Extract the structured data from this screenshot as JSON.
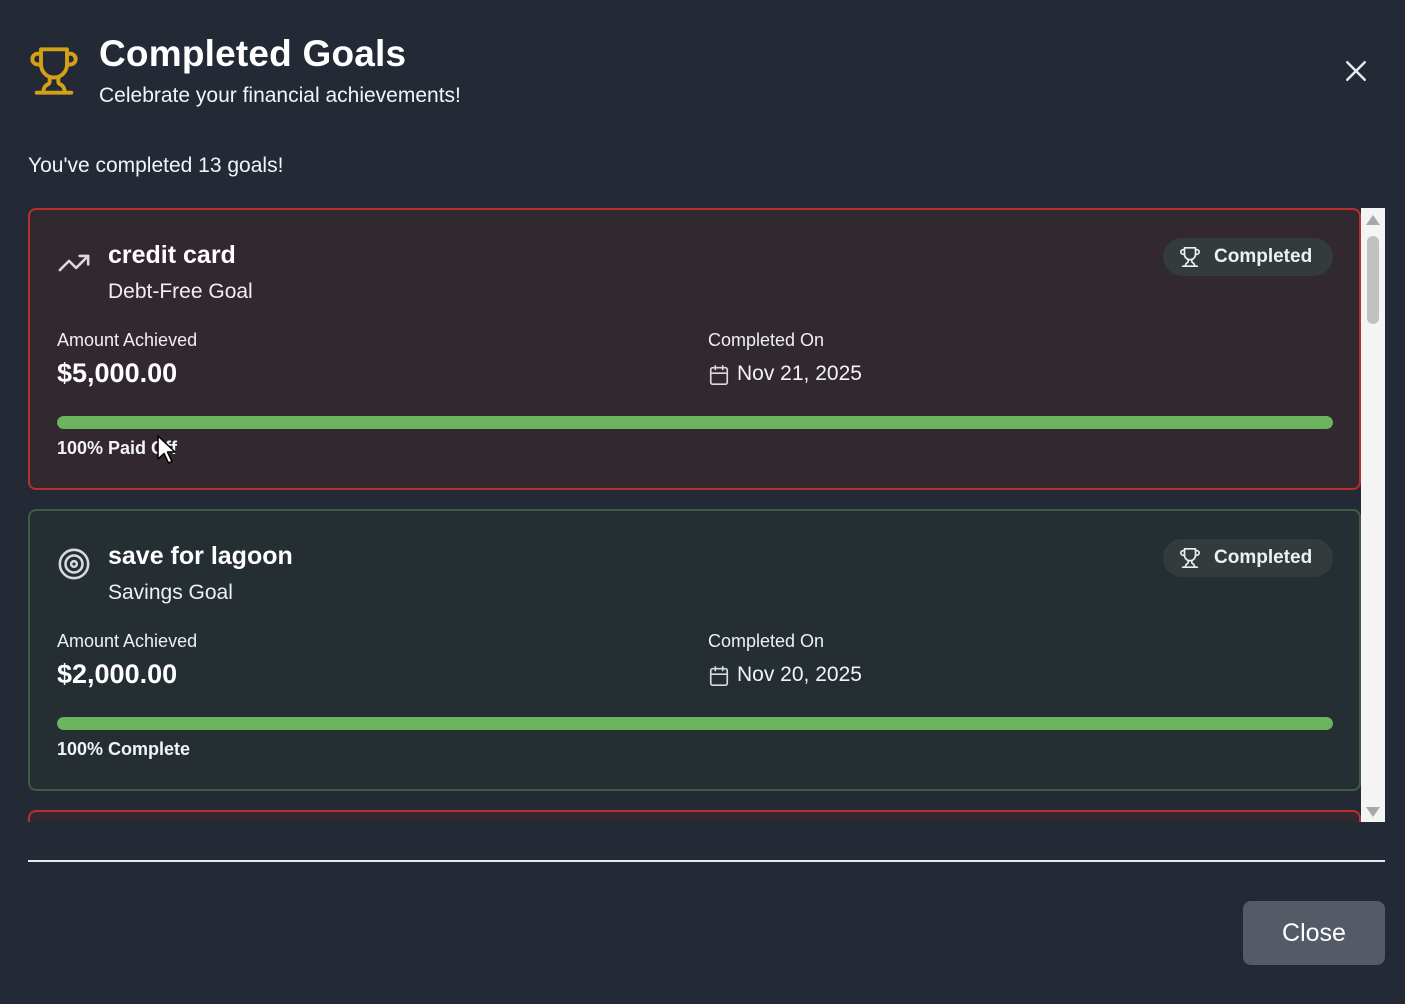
{
  "header": {
    "title": "Completed Goals",
    "subtitle": "Celebrate your financial achievements!",
    "icon": "trophy-icon",
    "icon_color": "#d4a017"
  },
  "summary": "You've completed 13 goals!",
  "goals": [
    {
      "name": "credit card",
      "type": "Debt-Free Goal",
      "icon": "trending-up-icon",
      "badge": "Completed",
      "amount_label": "Amount Achieved",
      "amount": "$5,000.00",
      "date_label": "Completed On",
      "date": "Nov 21, 2025",
      "progress": 1.0,
      "progress_text": "100% Paid Off",
      "border_color": "#b8302c"
    },
    {
      "name": "save for lagoon",
      "type": "Savings Goal",
      "icon": "target-icon",
      "badge": "Completed",
      "amount_label": "Amount Achieved",
      "amount": "$2,000.00",
      "date_label": "Completed On",
      "date": "Nov 20, 2025",
      "progress": 1.0,
      "progress_text": "100% Complete",
      "border_color": "#405c40"
    }
  ],
  "footer": {
    "close_label": "Close"
  },
  "colors": {
    "background": "#232a36",
    "progress_fill": "#6cb45e",
    "debt_card_bg": "#322830",
    "savings_card_bg": "#252f33"
  }
}
